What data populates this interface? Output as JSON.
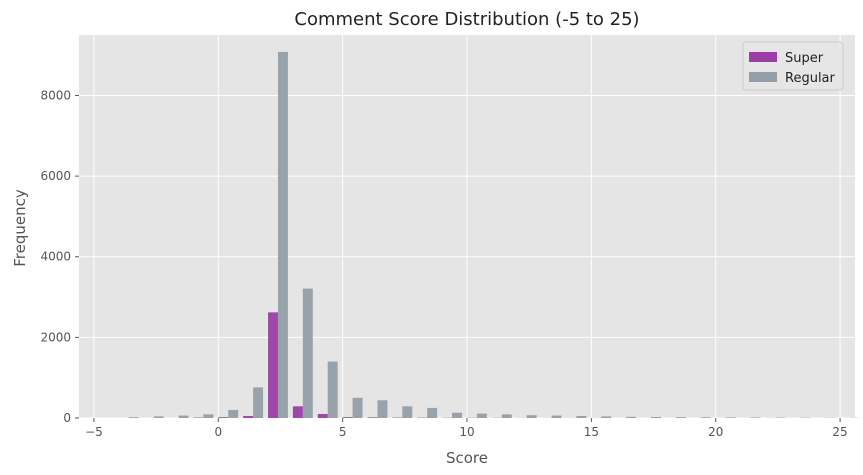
{
  "chart_data": {
    "type": "bar",
    "title": "Comment Score Distribution (-5 to 25)",
    "xlabel": "Score",
    "ylabel": "Frequency",
    "xlim": [
      -5.6,
      25.6
    ],
    "ylim": [
      0,
      9500
    ],
    "x_ticks": [
      -5,
      0,
      5,
      10,
      15,
      20,
      25
    ],
    "y_ticks": [
      0,
      2000,
      4000,
      6000,
      8000
    ],
    "bin_centers": [
      -5,
      -4,
      -3,
      -2,
      -1,
      0,
      1,
      2,
      3,
      4,
      5,
      6,
      7,
      8,
      9,
      10,
      11,
      12,
      13,
      14,
      15,
      16,
      17,
      18,
      19,
      20,
      21,
      22,
      23,
      24,
      25
    ],
    "series": [
      {
        "name": "Super",
        "color": "#9b3ea6",
        "values": [
          0,
          0,
          0,
          0,
          10,
          20,
          50,
          2620,
          290,
          100,
          20,
          15,
          10,
          8,
          5,
          5,
          4,
          3,
          2,
          2,
          2,
          1,
          1,
          1,
          1,
          1,
          1,
          1,
          1,
          1,
          0
        ]
      },
      {
        "name": "Regular",
        "color": "#949ea8",
        "values": [
          0,
          20,
          40,
          60,
          90,
          200,
          760,
          9080,
          3210,
          1400,
          500,
          440,
          290,
          250,
          130,
          110,
          90,
          70,
          60,
          50,
          40,
          30,
          25,
          20,
          18,
          15,
          12,
          10,
          8,
          6,
          5
        ]
      }
    ],
    "legend_position": "top-right",
    "grid": true
  }
}
